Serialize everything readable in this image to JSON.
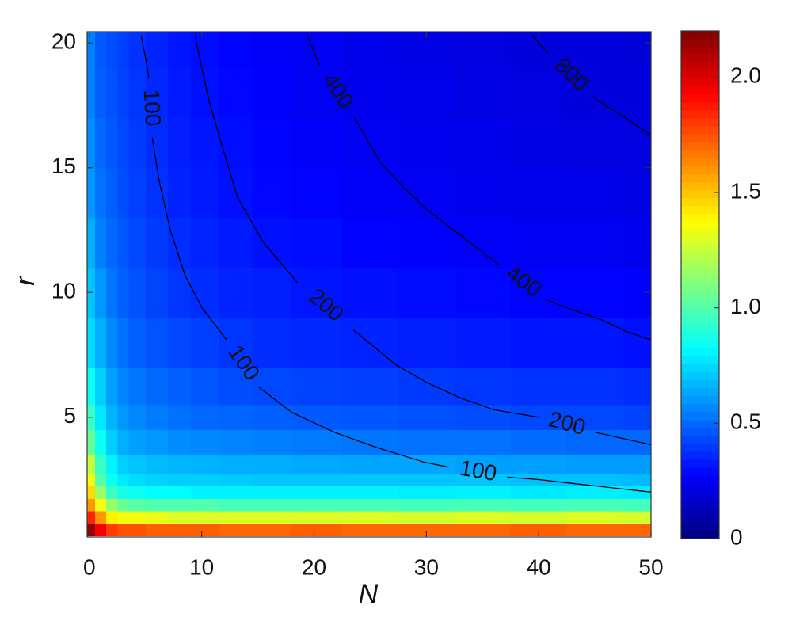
{
  "chart_data": {
    "type": "heatmap",
    "x_label": "N",
    "y_label": "r",
    "x": [
      0,
      1,
      2,
      3,
      4,
      6,
      8,
      10,
      13,
      16,
      20,
      25,
      30,
      35,
      40,
      45,
      50
    ],
    "y": [
      0.5,
      1,
      1.5,
      2,
      2.5,
      3,
      4,
      5,
      6,
      8,
      10,
      12,
      14,
      16,
      18,
      20
    ],
    "z": [
      [
        2.15,
        1.95,
        1.8,
        1.75,
        1.75,
        1.72,
        1.72,
        1.72,
        1.7,
        1.7,
        1.72,
        1.7,
        1.7,
        1.7,
        1.72,
        1.7,
        1.7
      ],
      [
        1.85,
        1.6,
        1.4,
        1.35,
        1.35,
        1.33,
        1.3,
        1.3,
        1.3,
        1.3,
        1.3,
        1.3,
        1.28,
        1.3,
        1.28,
        1.3,
        1.28
      ],
      [
        1.6,
        1.35,
        1.15,
        1.05,
        1.02,
        1.0,
        1.0,
        1.0,
        0.98,
        0.98,
        0.98,
        0.98,
        0.97,
        0.98,
        0.97,
        0.98,
        0.97
      ],
      [
        1.45,
        1.15,
        0.95,
        0.88,
        0.85,
        0.83,
        0.82,
        0.8,
        0.8,
        0.8,
        0.8,
        0.8,
        0.79,
        0.8,
        0.78,
        0.79,
        0.78
      ],
      [
        1.35,
        1.0,
        0.85,
        0.78,
        0.75,
        0.73,
        0.72,
        0.72,
        0.71,
        0.7,
        0.7,
        0.7,
        0.7,
        0.7,
        0.69,
        0.69,
        0.68
      ],
      [
        1.25,
        0.95,
        0.8,
        0.72,
        0.7,
        0.68,
        0.67,
        0.66,
        0.65,
        0.65,
        0.64,
        0.63,
        0.63,
        0.62,
        0.62,
        0.61,
        0.61
      ],
      [
        1.05,
        0.85,
        0.72,
        0.65,
        0.62,
        0.6,
        0.58,
        0.57,
        0.56,
        0.55,
        0.54,
        0.53,
        0.52,
        0.52,
        0.51,
        0.5,
        0.5
      ],
      [
        0.95,
        0.78,
        0.66,
        0.6,
        0.57,
        0.54,
        0.52,
        0.5,
        0.49,
        0.48,
        0.47,
        0.46,
        0.45,
        0.44,
        0.43,
        0.43,
        0.42
      ],
      [
        0.85,
        0.72,
        0.62,
        0.56,
        0.53,
        0.5,
        0.48,
        0.46,
        0.44,
        0.43,
        0.42,
        0.41,
        0.4,
        0.39,
        0.38,
        0.38,
        0.37
      ],
      [
        0.75,
        0.65,
        0.57,
        0.52,
        0.48,
        0.45,
        0.43,
        0.41,
        0.39,
        0.37,
        0.36,
        0.35,
        0.34,
        0.33,
        0.32,
        0.32,
        0.31
      ],
      [
        0.7,
        0.6,
        0.53,
        0.48,
        0.45,
        0.42,
        0.39,
        0.37,
        0.35,
        0.34,
        0.32,
        0.31,
        0.3,
        0.29,
        0.28,
        0.28,
        0.27
      ],
      [
        0.65,
        0.55,
        0.5,
        0.46,
        0.43,
        0.4,
        0.37,
        0.35,
        0.33,
        0.31,
        0.3,
        0.28,
        0.27,
        0.26,
        0.25,
        0.25,
        0.24
      ],
      [
        0.6,
        0.52,
        0.48,
        0.44,
        0.41,
        0.38,
        0.35,
        0.33,
        0.31,
        0.29,
        0.28,
        0.26,
        0.25,
        0.24,
        0.23,
        0.23,
        0.22
      ],
      [
        0.58,
        0.5,
        0.46,
        0.43,
        0.4,
        0.37,
        0.34,
        0.32,
        0.3,
        0.28,
        0.26,
        0.25,
        0.24,
        0.23,
        0.22,
        0.21,
        0.21
      ],
      [
        0.55,
        0.48,
        0.45,
        0.42,
        0.39,
        0.36,
        0.33,
        0.31,
        0.29,
        0.27,
        0.25,
        0.24,
        0.23,
        0.22,
        0.21,
        0.2,
        0.2
      ],
      [
        0.55,
        0.47,
        0.44,
        0.41,
        0.38,
        0.35,
        0.32,
        0.3,
        0.28,
        0.26,
        0.25,
        0.23,
        0.22,
        0.21,
        0.2,
        0.2,
        0.19
      ]
    ],
    "colormap": "jet",
    "clim": [
      0,
      2.2
    ],
    "cticks": [
      0,
      0.5,
      {
        "value": 1,
        "label": "1.0"
      },
      1.5,
      {
        "value": 2,
        "label": "2.0"
      }
    ],
    "xlim": [
      -0.2,
      50
    ],
    "xticks": [
      0,
      10,
      20,
      30,
      40,
      50
    ],
    "ylim": [
      0.2,
      20.45
    ],
    "yticks": [
      5,
      10,
      15,
      20
    ],
    "contours": [
      {
        "level": 100,
        "x": [
          4.6,
          5.0,
          5.3,
          null,
          5.6,
          6.2,
          7.2,
          8.5,
          10,
          11.2,
          12.2,
          null,
          15.1,
          18,
          21.8,
          25.5,
          29.8,
          32,
          null,
          37.2,
          40,
          43,
          46,
          50
        ],
        "y": [
          20.3,
          19.4,
          18.6,
          null,
          16.2,
          14.5,
          12.5,
          10.7,
          9.4,
          8.7,
          8.1,
          null,
          6.2,
          5.2,
          4.4,
          3.8,
          3.2,
          3.0,
          null,
          2.6,
          2.5,
          2.35,
          2.2,
          2.0
        ]
      },
      {
        "level": 200,
        "x": [
          9.4,
          10,
          10.7,
          12,
          13.2,
          15.5,
          18.5,
          null,
          23.5,
          27.3,
          30,
          32.9,
          36,
          40,
          null,
          45,
          47.5,
          50
        ],
        "y": [
          20.3,
          19.0,
          17.6,
          15.6,
          13.8,
          12.0,
          10.4,
          null,
          8.5,
          7.1,
          6.4,
          5.8,
          5.3,
          5.0,
          null,
          4.4,
          4.15,
          3.9
        ]
      },
      {
        "level": 400,
        "x": [
          19.4,
          20.5,
          null,
          23.6,
          25.9,
          28,
          30.1,
          33,
          36.5,
          null,
          40.7,
          43,
          45.6,
          48,
          50
        ],
        "y": [
          20.3,
          19.1,
          null,
          17.0,
          15.2,
          14.2,
          13.3,
          12.3,
          11.1,
          null,
          9.7,
          9.3,
          8.9,
          8.4,
          8.1
        ]
      },
      {
        "level": 800,
        "x": [
          39.4,
          40.8,
          null,
          44.9,
          47.7,
          50
        ],
        "y": [
          20.3,
          19.6,
          null,
          17.8,
          17.0,
          16.3
        ]
      }
    ]
  }
}
